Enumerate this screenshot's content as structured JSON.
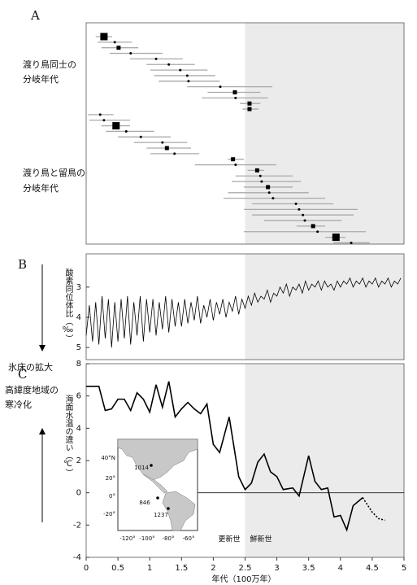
{
  "chart_data": [
    {
      "type": "interval",
      "label": "A",
      "series": [
        {
          "name": [
            "渡り鳥同士の",
            "分岐年代"
          ],
          "values": [
            0.28,
            0.45,
            0.51,
            0.7,
            1.1,
            1.3,
            1.48,
            1.59,
            1.61,
            2.11,
            2.34,
            2.35,
            2.57,
            2.57
          ],
          "low": [
            0.15,
            0.18,
            0.24,
            0.37,
            0.69,
            0.95,
            1.01,
            1.07,
            1.14,
            1.59,
            1.91,
            1.82,
            2.42,
            2.46
          ],
          "high": [
            0.41,
            0.72,
            0.82,
            1.2,
            1.52,
            1.71,
            1.91,
            2.03,
            2.1,
            2.93,
            2.74,
            2.86,
            2.74,
            2.71
          ],
          "markers": [
            "large",
            "dot",
            "small",
            "dot",
            "dot",
            "dot",
            "dot",
            "dot",
            "dot",
            "dot",
            "small",
            "dot",
            "small",
            "small"
          ]
        },
        {
          "name": [
            "渡り鳥と留鳥の",
            "分岐年代"
          ],
          "values": [
            0.22,
            0.28,
            0.47,
            0.63,
            0.86,
            1.2,
            1.27,
            1.39,
            2.31,
            2.35,
            2.69,
            2.74,
            2.76,
            2.86,
            2.88,
            2.94,
            3.3,
            3.35,
            3.41,
            3.44,
            3.57,
            3.64,
            3.93,
            4.17
          ],
          "low": [
            0.03,
            0.05,
            0.24,
            0.31,
            0.5,
            0.75,
            0.95,
            1.01,
            2.23,
            1.71,
            2.54,
            2.35,
            2.29,
            2.48,
            2.23,
            2.16,
            2.61,
            2.48,
            2.61,
            2.8,
            3.31,
            2.48,
            3.76,
            3.89
          ],
          "high": [
            0.43,
            0.69,
            0.69,
            1.07,
            1.33,
            1.59,
            1.65,
            1.78,
            2.48,
            2.99,
            2.8,
            3.25,
            3.38,
            3.25,
            3.5,
            3.76,
            3.89,
            4.27,
            4.21,
            4.02,
            3.76,
            4.4,
            4.08,
            4.46
          ],
          "markers": [
            "dot",
            "dot",
            "large",
            "dot",
            "dot",
            "dot",
            "small",
            "dot",
            "small",
            "dot",
            "small",
            "dot",
            "dot",
            "small",
            "dot",
            "dot",
            "dot",
            "dot",
            "dot",
            "dot",
            "small",
            "dot",
            "large",
            "dot"
          ]
        }
      ]
    },
    {
      "type": "line",
      "label": "B",
      "y_label": "酸素同位体比（‰）",
      "annotation": "氷床の拡大",
      "ylim": [
        1.9,
        5.4
      ],
      "y_inverted": true,
      "yticks": [
        3,
        4,
        5
      ],
      "color": "#000000",
      "x": [
        0,
        0.05,
        0.1,
        0.15,
        0.2,
        0.25,
        0.3,
        0.35,
        0.4,
        0.45,
        0.5,
        0.55,
        0.6,
        0.65,
        0.7,
        0.75,
        0.8,
        0.85,
        0.9,
        0.95,
        1,
        1.05,
        1.1,
        1.15,
        1.2,
        1.25,
        1.3,
        1.35,
        1.4,
        1.45,
        1.5,
        1.55,
        1.6,
        1.65,
        1.7,
        1.75,
        1.8,
        1.85,
        1.9,
        1.95,
        2,
        2.05,
        2.1,
        2.15,
        2.2,
        2.25,
        2.3,
        2.35,
        2.4,
        2.45,
        2.5,
        2.55,
        2.6,
        2.65,
        2.7,
        2.75,
        2.8,
        2.85,
        2.9,
        2.95,
        3,
        3.05,
        3.1,
        3.15,
        3.2,
        3.25,
        3.3,
        3.35,
        3.4,
        3.45,
        3.5,
        3.55,
        3.6,
        3.65,
        3.7,
        3.75,
        3.8,
        3.85,
        3.9,
        3.95,
        4,
        4.05,
        4.1,
        4.15,
        4.2,
        4.25,
        4.3,
        4.35,
        4.4,
        4.45,
        4.5,
        4.55,
        4.6,
        4.65,
        4.7,
        4.75,
        4.8,
        4.85,
        4.9,
        4.95
      ],
      "values": [
        4.6,
        3.6,
        4.8,
        3.5,
        4.9,
        3.3,
        4.7,
        3.4,
        5.0,
        3.5,
        4.8,
        3.4,
        4.7,
        3.3,
        4.9,
        3.5,
        4.6,
        3.3,
        4.8,
        3.4,
        4.5,
        3.4,
        4.6,
        3.5,
        4.4,
        3.3,
        4.5,
        3.4,
        4.3,
        3.5,
        4.3,
        3.4,
        4.2,
        3.5,
        4.1,
        3.3,
        4.2,
        3.6,
        4.0,
        3.4,
        4.1,
        3.5,
        3.9,
        3.4,
        4.0,
        3.5,
        3.8,
        3.3,
        3.9,
        3.4,
        3.7,
        3.3,
        3.6,
        3.2,
        3.5,
        3.3,
        3.4,
        3.1,
        3.5,
        3.2,
        3.3,
        3.0,
        3.2,
        2.9,
        3.3,
        3.0,
        3.1,
        2.9,
        3.2,
        2.8,
        3.1,
        2.9,
        3.0,
        2.8,
        3.1,
        2.8,
        3.0,
        2.9,
        3.1,
        2.8,
        3.0,
        2.8,
        2.9,
        2.7,
        3.0,
        2.8,
        2.9,
        2.7,
        3.0,
        2.8,
        2.9,
        2.7,
        3.0,
        2.8,
        2.9,
        2.7,
        3.0,
        2.8,
        2.9,
        2.7
      ]
    },
    {
      "type": "line",
      "label": "C",
      "y_label": "海面水温の違い（℃）",
      "annotation": [
        "高緯度地域の",
        "寒冷化"
      ],
      "x_label": "年代（100万年）",
      "xlim": [
        0,
        5
      ],
      "xticks": [
        0,
        0.5,
        1,
        1.5,
        2,
        2.5,
        3,
        3.5,
        4,
        4.5,
        5
      ],
      "shade_xlim": [
        2.5,
        5
      ],
      "epochs": [
        "更新世",
        "鮮新世"
      ],
      "ylim": [
        -4,
        8
      ],
      "yticks": [
        -4,
        -2,
        0,
        2,
        4,
        6,
        8
      ],
      "series": [
        {
          "style": "solid",
          "color": "#000000",
          "x": [
            0,
            0.2,
            0.3,
            0.4,
            0.5,
            0.6,
            0.7,
            0.8,
            0.9,
            1.0,
            1.1,
            1.2,
            1.3,
            1.4,
            1.5,
            1.6,
            1.7,
            1.8,
            1.9,
            2.0,
            2.1,
            2.25,
            2.4,
            2.5,
            2.6,
            2.7,
            2.8,
            2.9,
            3.0,
            3.1,
            3.25,
            3.35,
            3.5,
            3.6,
            3.7,
            3.8,
            3.9,
            4.0,
            4.1,
            4.2,
            4.35
          ],
          "values": [
            6.6,
            6.6,
            5.1,
            5.2,
            5.8,
            5.8,
            5.1,
            6.2,
            5.8,
            5.0,
            6.7,
            5.3,
            6.9,
            4.7,
            5.2,
            5.6,
            5.2,
            4.9,
            5.5,
            3.0,
            2.5,
            4.7,
            1.0,
            0.2,
            0.6,
            1.9,
            2.4,
            1.3,
            1.0,
            0.2,
            0.3,
            -0.2,
            2.3,
            0.7,
            0.2,
            0.3,
            -1.5,
            -1.4,
            -2.3,
            -0.8,
            -0.3
          ]
        },
        {
          "style": "dotted",
          "color": "#000000",
          "x": [
            4.35,
            4.5,
            4.6,
            4.7
          ],
          "values": [
            -0.3,
            -1.2,
            -1.6,
            -1.7
          ]
        }
      ],
      "map": {
        "lat_labels": [
          "40°N",
          "20°",
          "0°",
          "-20°"
        ],
        "lon_labels": [
          "-120°",
          "-100°",
          "-80°",
          "-60°"
        ],
        "sites": [
          "1014",
          "846",
          "1237"
        ]
      }
    }
  ]
}
